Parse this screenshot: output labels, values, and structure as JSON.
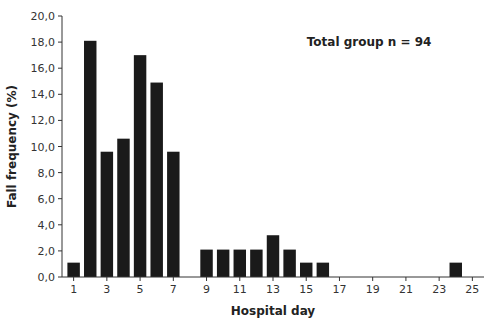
{
  "chart_data": {
    "type": "bar",
    "xlabel": "Hospital day",
    "ylabel": "Fall frequency (%)",
    "annotation": "Total group n = 94",
    "x": [
      1,
      2,
      3,
      4,
      5,
      6,
      7,
      8,
      9,
      10,
      11,
      12,
      13,
      14,
      15,
      16,
      17,
      18,
      19,
      20,
      21,
      22,
      23,
      24
    ],
    "values": [
      1.1,
      18.1,
      9.6,
      10.6,
      17.0,
      14.9,
      9.6,
      0.0,
      2.1,
      2.1,
      2.1,
      2.1,
      3.2,
      2.1,
      1.1,
      1.1,
      0.0,
      0.0,
      0.0,
      0.0,
      0.0,
      0.0,
      0.0,
      1.1
    ],
    "color": "#1a1a1a",
    "xlim": [
      0.3,
      25.7
    ],
    "xticks": [
      1,
      3,
      5,
      7,
      9,
      11,
      13,
      15,
      17,
      19,
      21,
      23,
      25
    ],
    "ylim": [
      0,
      20.0
    ],
    "yticks": [
      {
        "value": 0.0,
        "label": "0,0"
      },
      {
        "value": 2.0,
        "label": "2,0"
      },
      {
        "value": 4.0,
        "label": "4,0"
      },
      {
        "value": 6.0,
        "label": "6,0"
      },
      {
        "value": 8.0,
        "label": "8,0"
      },
      {
        "value": 10.0,
        "label": "10,0"
      },
      {
        "value": 12.0,
        "label": "12,0"
      },
      {
        "value": 14.0,
        "label": "14,0"
      },
      {
        "value": 16.0,
        "label": "16,0"
      },
      {
        "value": 18.0,
        "label": "18,0"
      },
      {
        "value": 20.0,
        "label": "20,0"
      }
    ],
    "grid": false
  }
}
